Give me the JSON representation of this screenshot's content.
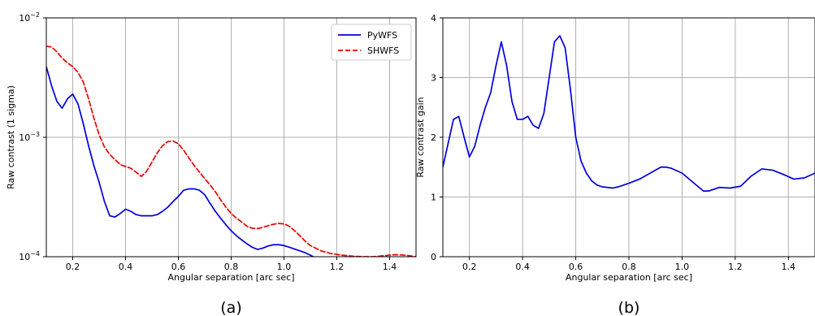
{
  "chart_data": [
    {
      "type": "line",
      "caption": "(a)",
      "xlabel": "Angular separation [arc sec]",
      "ylabel": "Raw contrast (1 sigma)",
      "xlim": [
        0.1,
        1.5
      ],
      "ylim": [
        0.0001,
        0.01
      ],
      "yscale": "log",
      "grid": true,
      "legend": "top-right",
      "xticks": [
        {
          "v": 0.2,
          "label": "0.2"
        },
        {
          "v": 0.4,
          "label": "0.4"
        },
        {
          "v": 0.6,
          "label": "0.6"
        },
        {
          "v": 0.8,
          "label": "0.8"
        },
        {
          "v": 1.0,
          "label": "1.0"
        },
        {
          "v": 1.2,
          "label": "1.2"
        },
        {
          "v": 1.4,
          "label": "1.4"
        }
      ],
      "yticks": [
        {
          "v": 0.0001,
          "base": "10",
          "exp": "−4"
        },
        {
          "v": 0.001,
          "base": "10",
          "exp": "−3"
        },
        {
          "v": 0.01,
          "base": "10",
          "exp": "−2"
        }
      ],
      "series": [
        {
          "name": "PyWFS",
          "color": "#0000dd",
          "dash": "solid",
          "x": [
            0.1,
            0.12,
            0.14,
            0.16,
            0.18,
            0.2,
            0.22,
            0.24,
            0.26,
            0.28,
            0.3,
            0.32,
            0.34,
            0.36,
            0.38,
            0.4,
            0.42,
            0.44,
            0.46,
            0.48,
            0.5,
            0.52,
            0.54,
            0.56,
            0.58,
            0.6,
            0.62,
            0.64,
            0.66,
            0.68,
            0.7,
            0.72,
            0.74,
            0.76,
            0.78,
            0.8,
            0.82,
            0.84,
            0.86,
            0.88,
            0.9,
            0.92,
            0.94,
            0.96,
            0.98,
            1.0,
            1.02,
            1.04,
            1.06,
            1.08,
            1.1,
            1.12
          ],
          "y": [
            0.0039,
            0.0027,
            0.002,
            0.00175,
            0.0021,
            0.0023,
            0.0019,
            0.0013,
            0.00085,
            0.00058,
            0.00042,
            0.00029,
            0.00022,
            0.000215,
            0.00023,
            0.00025,
            0.00024,
            0.000225,
            0.00022,
            0.00022,
            0.00022,
            0.000225,
            0.00024,
            0.00026,
            0.00029,
            0.00032,
            0.00036,
            0.00037,
            0.00037,
            0.00036,
            0.00033,
            0.00028,
            0.00024,
            0.00021,
            0.000185,
            0.000165,
            0.00015,
            0.000138,
            0.000128,
            0.00012,
            0.000115,
            0.000118,
            0.000123,
            0.000126,
            0.000126,
            0.000124,
            0.00012,
            0.000116,
            0.000112,
            0.000108,
            0.000103,
            9.75e-05
          ]
        },
        {
          "name": "SHWFS",
          "color": "#ee0000",
          "dash": "dashed",
          "x": [
            0.1,
            0.12,
            0.14,
            0.16,
            0.18,
            0.2,
            0.22,
            0.24,
            0.26,
            0.28,
            0.3,
            0.32,
            0.34,
            0.36,
            0.38,
            0.4,
            0.42,
            0.44,
            0.46,
            0.48,
            0.5,
            0.52,
            0.54,
            0.56,
            0.58,
            0.6,
            0.62,
            0.64,
            0.66,
            0.68,
            0.7,
            0.72,
            0.74,
            0.76,
            0.78,
            0.8,
            0.82,
            0.84,
            0.86,
            0.88,
            0.9,
            0.92,
            0.94,
            0.96,
            0.98,
            1.0,
            1.02,
            1.04,
            1.06,
            1.08,
            1.1,
            1.14,
            1.18,
            1.22,
            1.26,
            1.3,
            1.34,
            1.38,
            1.42,
            1.46,
            1.5
          ],
          "y": [
            0.0058,
            0.0057,
            0.0052,
            0.0046,
            0.0042,
            0.0039,
            0.0035,
            0.0029,
            0.0021,
            0.00145,
            0.00105,
            0.00083,
            0.00072,
            0.00065,
            0.00059,
            0.00057,
            0.00055,
            0.00051,
            0.00047,
            0.00052,
            0.00062,
            0.00074,
            0.00085,
            0.00092,
            0.00093,
            0.00088,
            0.00078,
            0.00067,
            0.00058,
            0.00051,
            0.00045,
            0.0004,
            0.00035,
            0.0003,
            0.00026,
            0.00023,
            0.00021,
            0.000195,
            0.00018,
            0.000173,
            0.000172,
            0.000176,
            0.000182,
            0.000187,
            0.00019,
            0.000188,
            0.00018,
            0.000165,
            0.00015,
            0.000135,
            0.000124,
            0.000112,
            0.000106,
            0.000103,
            0.000101,
            0.0001,
            0.0001,
            0.000102,
            0.000104,
            0.000103,
            0.0001
          ]
        }
      ]
    },
    {
      "type": "line",
      "caption": "(b)",
      "xlabel": "Angular separation [arc sec]",
      "ylabel": "Raw contrast gain",
      "xlim": [
        0.1,
        1.5
      ],
      "ylim": [
        0,
        4
      ],
      "grid": true,
      "xticks": [
        {
          "v": 0.2,
          "label": "0.2"
        },
        {
          "v": 0.4,
          "label": "0.4"
        },
        {
          "v": 0.6,
          "label": "0.6"
        },
        {
          "v": 0.8,
          "label": "0.8"
        },
        {
          "v": 1.0,
          "label": "1.0"
        },
        {
          "v": 1.2,
          "label": "1.2"
        },
        {
          "v": 1.4,
          "label": "1.4"
        }
      ],
      "yticks": [
        {
          "v": 0,
          "label": "0"
        },
        {
          "v": 1,
          "label": "1"
        },
        {
          "v": 2,
          "label": "2"
        },
        {
          "v": 3,
          "label": "3"
        },
        {
          "v": 4,
          "label": "4"
        }
      ],
      "series": [
        {
          "color": "#0000dd",
          "dash": "solid",
          "x": [
            0.1,
            0.12,
            0.14,
            0.16,
            0.18,
            0.2,
            0.22,
            0.24,
            0.26,
            0.28,
            0.3,
            0.32,
            0.34,
            0.36,
            0.38,
            0.4,
            0.42,
            0.44,
            0.46,
            0.48,
            0.5,
            0.52,
            0.54,
            0.56,
            0.58,
            0.6,
            0.62,
            0.64,
            0.66,
            0.68,
            0.7,
            0.72,
            0.74,
            0.76,
            0.78,
            0.8,
            0.84,
            0.88,
            0.92,
            0.94,
            0.96,
            1.0,
            1.04,
            1.08,
            1.1,
            1.14,
            1.18,
            1.22,
            1.26,
            1.3,
            1.34,
            1.38,
            1.42,
            1.46,
            1.5
          ],
          "y": [
            1.5,
            1.9,
            2.3,
            2.35,
            2.0,
            1.67,
            1.85,
            2.2,
            2.5,
            2.75,
            3.2,
            3.6,
            3.2,
            2.6,
            2.3,
            2.3,
            2.35,
            2.2,
            2.15,
            2.4,
            3.0,
            3.6,
            3.7,
            3.5,
            2.8,
            2.0,
            1.6,
            1.4,
            1.27,
            1.2,
            1.17,
            1.16,
            1.15,
            1.17,
            1.2,
            1.23,
            1.3,
            1.4,
            1.5,
            1.5,
            1.48,
            1.4,
            1.25,
            1.1,
            1.1,
            1.16,
            1.15,
            1.18,
            1.35,
            1.47,
            1.45,
            1.38,
            1.3,
            1.32,
            1.4
          ]
        }
      ]
    }
  ]
}
